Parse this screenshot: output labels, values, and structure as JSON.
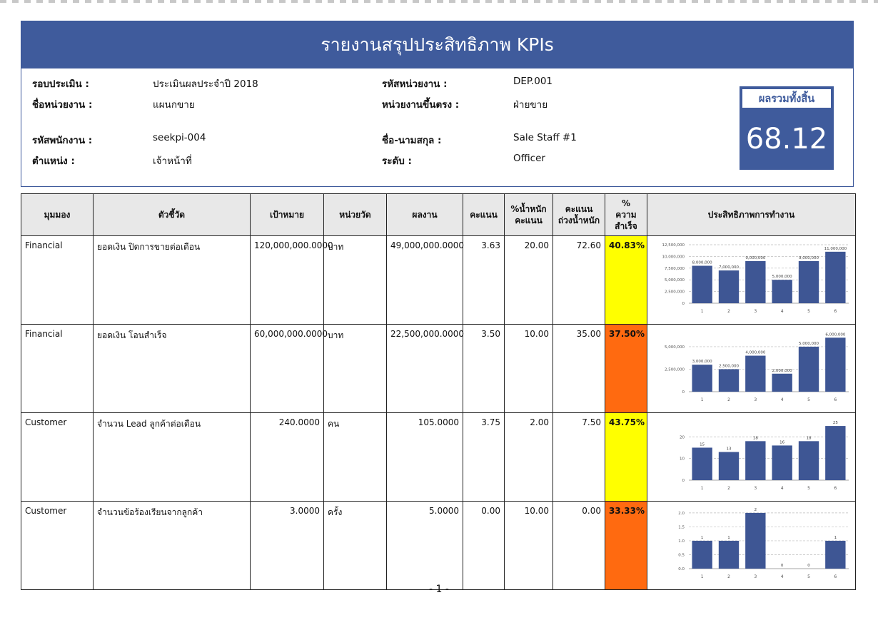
{
  "report": {
    "title": "รายงานสรุปประสิทธิภาพ KPIs",
    "page_number": "- 1 -"
  },
  "info": {
    "round_label": "รอบประเมิน :",
    "round_value": "ประเมินผลประจำปี 2018",
    "unit_code_label": "รหัสหน่วยงาน :",
    "unit_code_value": "DEP.001",
    "unit_name_label": "ชื่อหน่วยงาน :",
    "unit_name_value": "แผนกขาย",
    "parent_unit_label": "หน่วยงานขึ้นตรง :",
    "parent_unit_value": "ฝ่ายขาย",
    "emp_code_label": "รหัสพนักงาน :",
    "emp_code_value": "seekpi-004",
    "emp_name_label": "ชื่อ-นามสกุล :",
    "emp_name_value": "Sale Staff #1",
    "position_label": "ตำแหน่ง :",
    "position_value": "เจ้าหน้าที่",
    "level_label": "ระดับ :",
    "level_value": "Officer"
  },
  "total": {
    "label": "ผลรวมทั้งสิ้น",
    "value": "68.12"
  },
  "table": {
    "headers": {
      "perspective": "มุมมอง",
      "indicator": "ตัวชี้วัด",
      "target": "เป้าหมาย",
      "unit": "หน่วยวัด",
      "result": "ผลงาน",
      "score": "คะแนน",
      "weight_1": "%น้ำหนัก",
      "weight_2": "คะแนน",
      "weighted_1": "คะแนน",
      "weighted_2": "ถ่วงน้ำหนัก",
      "success_1": "%",
      "success_2": "ความสำเร็จ",
      "performance": "ประสิทธิภาพการทำงาน"
    },
    "rows": [
      {
        "perspective": "Financial",
        "indicator": "ยอดเงิน ปิดการขายต่อเดือน",
        "target": "120,000,000.0000",
        "unit": "บาท",
        "result": "49,000,000.0000",
        "score": "3.63",
        "weight": "20.00",
        "weighted": "72.60",
        "success": "40.83%",
        "success_color": "#ffff00"
      },
      {
        "perspective": "Financial",
        "indicator": "ยอดเงิน โอนสำเร็จ",
        "target": "60,000,000.0000",
        "unit": "บาท",
        "result": "22,500,000.0000",
        "score": "3.50",
        "weight": "10.00",
        "weighted": "35.00",
        "success": "37.50%",
        "success_color": "#ff6a10"
      },
      {
        "perspective": "Customer",
        "indicator": "จำนวน Lead ลูกค้าต่อเดือน",
        "target": "240.0000",
        "unit": "คน",
        "result": "105.0000",
        "score": "3.75",
        "weight": "2.00",
        "weighted": "7.50",
        "success": "43.75%",
        "success_color": "#ffff00"
      },
      {
        "perspective": "Customer",
        "indicator": "จำนวนข้อร้องเรียนจากลูกค้า",
        "target": "3.0000",
        "unit": "ครั้ง",
        "result": "5.0000",
        "score": "0.00",
        "weight": "10.00",
        "weighted": "0.00",
        "success": "33.33%",
        "success_color": "#ff6a10"
      }
    ]
  },
  "chart_data": [
    {
      "type": "bar",
      "categories": [
        "1",
        "2",
        "3",
        "4",
        "5",
        "6"
      ],
      "values": [
        8000000,
        7000000,
        9000000,
        5000000,
        9000000,
        11000000
      ],
      "value_labels": [
        "8,000,000",
        "7,000,000",
        "9,000,000",
        "5,000,000",
        "9,000,000",
        "11,000,000"
      ],
      "ylim": [
        0,
        12500000
      ],
      "yticks": [
        "0",
        "2,500,000",
        "5,000,000",
        "7,500,000",
        "10,000,000",
        "12,500,000"
      ],
      "grid": true,
      "bar_color": "#3e5694"
    },
    {
      "type": "bar",
      "categories": [
        "1",
        "2",
        "3",
        "4",
        "5",
        "6"
      ],
      "values": [
        3000000,
        2500000,
        4000000,
        2000000,
        5000000,
        6000000
      ],
      "value_labels": [
        "3,000,000",
        "2,500,000",
        "4,000,000",
        "2,000,000",
        "5,000,000",
        "6,000,000"
      ],
      "ylim": [
        0,
        6500000
      ],
      "yticks": [
        "0",
        "2,500,000",
        "5,000,000"
      ],
      "grid": true,
      "bar_color": "#3e5694"
    },
    {
      "type": "bar",
      "categories": [
        "1",
        "2",
        "3",
        "4",
        "5",
        "6"
      ],
      "values": [
        15,
        13,
        18,
        16,
        18,
        25
      ],
      "value_labels": [
        "15",
        "13",
        "18",
        "16",
        "18",
        "25"
      ],
      "ylim": [
        0,
        27
      ],
      "yticks": [
        "0",
        "10",
        "20"
      ],
      "grid": true,
      "bar_color": "#3e5694"
    },
    {
      "type": "bar",
      "categories": [
        "1",
        "2",
        "3",
        "4",
        "5",
        "6"
      ],
      "values": [
        1,
        1,
        2,
        0,
        0,
        1
      ],
      "value_labels": [
        "1",
        "1",
        "2",
        "0",
        "0",
        "1"
      ],
      "ylim": [
        0,
        2.1
      ],
      "yticks": [
        "0.0",
        "0.5",
        "1.0",
        "1.5",
        "2.0"
      ],
      "grid": true,
      "bar_color": "#3e5694"
    }
  ]
}
